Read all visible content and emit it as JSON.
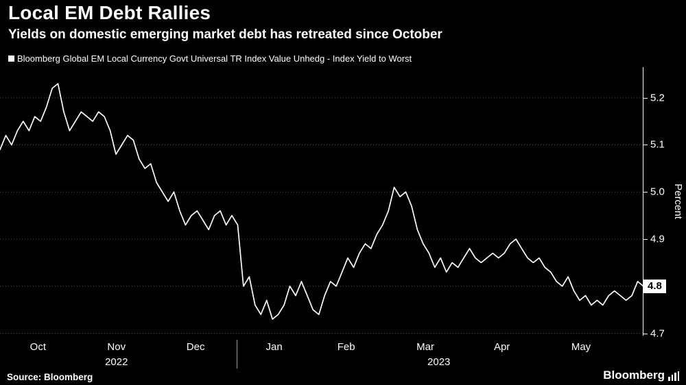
{
  "header": {
    "title": "Local EM Debt Rallies",
    "subtitle": "Yields on domestic emerging market debt has retreated since October"
  },
  "legend": {
    "label": "Bloomberg Global EM Local Currency Govt Universal TR Index Value Unhedg - Index Yield to Worst",
    "marker_color": "#ffffff"
  },
  "footer": {
    "source": "Source: Bloomberg",
    "brand": "Bloomberg"
  },
  "chart_data": {
    "type": "line",
    "title": "Local EM Debt Rallies",
    "series_name": "Bloomberg Global EM Local Currency Govt Universal TR Index Value Unhedg - Index Yield to Worst",
    "ylabel": "Percent",
    "ylim": [
      4.695,
      5.265
    ],
    "yticks": [
      5.2,
      5.1,
      5.0,
      4.9,
      4.8,
      4.7
    ],
    "grid": "dotted-horizontal",
    "legend_position": "top-left",
    "line_color": "#ffffff",
    "background": "#000000",
    "last_value_label": "4.8",
    "x_axis": {
      "months": [
        {
          "label": "Oct",
          "pos": 0.059
        },
        {
          "label": "Nov",
          "pos": 0.181
        },
        {
          "label": "Dec",
          "pos": 0.304
        },
        {
          "label": "Jan",
          "pos": 0.426
        },
        {
          "label": "Feb",
          "pos": 0.538
        },
        {
          "label": "Mar",
          "pos": 0.661
        },
        {
          "label": "Apr",
          "pos": 0.78
        },
        {
          "label": "May",
          "pos": 0.903
        }
      ],
      "years": [
        {
          "label": "2022",
          "pos": 0.181
        },
        {
          "label": "2023",
          "pos": 0.682
        }
      ],
      "divider_pos": 0.368
    },
    "values": [
      5.09,
      5.12,
      5.1,
      5.13,
      5.15,
      5.13,
      5.16,
      5.15,
      5.18,
      5.22,
      5.23,
      5.17,
      5.13,
      5.15,
      5.17,
      5.16,
      5.15,
      5.17,
      5.16,
      5.13,
      5.08,
      5.1,
      5.12,
      5.11,
      5.07,
      5.05,
      5.06,
      5.02,
      5.0,
      4.98,
      5.0,
      4.96,
      4.93,
      4.95,
      4.96,
      4.94,
      4.92,
      4.95,
      4.96,
      4.93,
      4.95,
      4.93,
      4.8,
      4.82,
      4.76,
      4.74,
      4.77,
      4.73,
      4.74,
      4.76,
      4.8,
      4.78,
      4.81,
      4.78,
      4.75,
      4.74,
      4.78,
      4.81,
      4.8,
      4.83,
      4.86,
      4.84,
      4.87,
      4.89,
      4.88,
      4.91,
      4.93,
      4.96,
      5.01,
      4.99,
      5.0,
      4.97,
      4.92,
      4.89,
      4.87,
      4.84,
      4.86,
      4.83,
      4.85,
      4.84,
      4.86,
      4.88,
      4.86,
      4.85,
      4.86,
      4.87,
      4.86,
      4.87,
      4.89,
      4.9,
      4.88,
      4.86,
      4.85,
      4.86,
      4.84,
      4.83,
      4.81,
      4.8,
      4.82,
      4.79,
      4.77,
      4.78,
      4.76,
      4.77,
      4.76,
      4.78,
      4.79,
      4.78,
      4.77,
      4.78,
      4.81,
      4.8
    ]
  }
}
